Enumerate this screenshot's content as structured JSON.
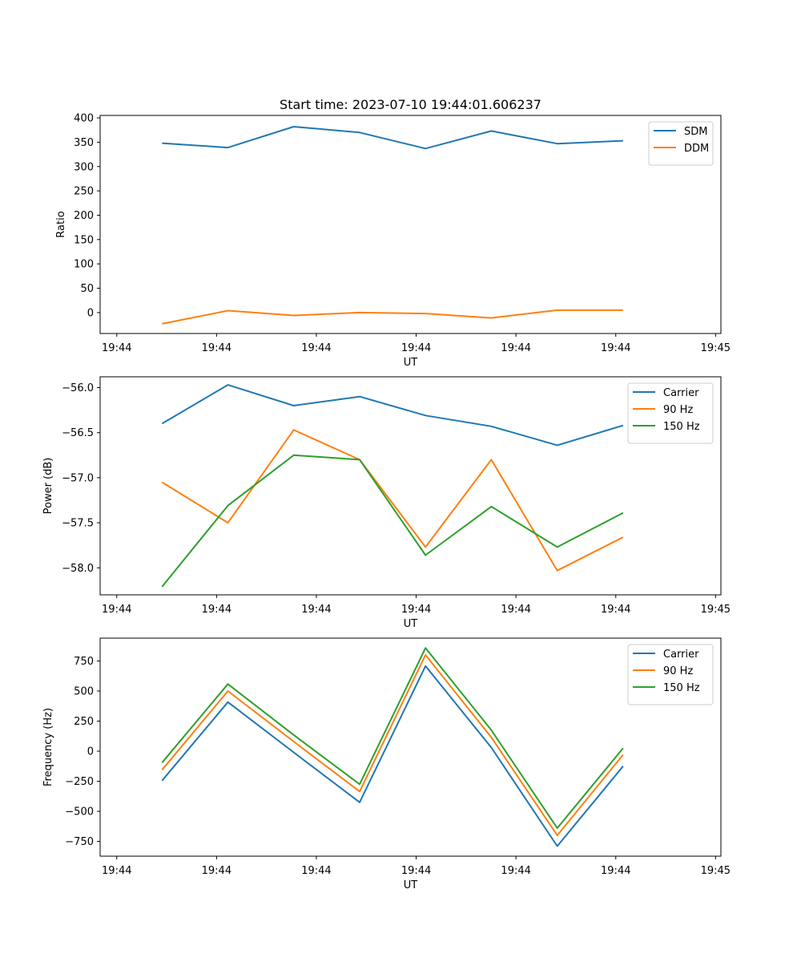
{
  "figure_title": "Start time: 2023-07-10 19:44:01.606237",
  "chart_data": [
    {
      "type": "line",
      "xlabel": "UT",
      "ylabel": "Ratio",
      "xlim": [
        0,
        9.33
      ],
      "x_ticks": [
        0.25,
        1.75,
        3.25,
        4.75,
        6.25,
        7.75,
        9.25
      ],
      "x_tick_labels": [
        "19:44",
        "19:44",
        "19:44",
        "19:44",
        "19:44",
        "19:44",
        "19:45"
      ],
      "ylim": [
        -43,
        405
      ],
      "y_ticks": [
        0,
        50,
        100,
        150,
        200,
        250,
        300,
        350,
        400
      ],
      "y_tick_labels": [
        "0",
        "50",
        "100",
        "150",
        "200",
        "250",
        "300",
        "350",
        "400"
      ],
      "legend_position": "top-right",
      "x": [
        0.93,
        1.92,
        2.91,
        3.9,
        4.89,
        5.88,
        6.87,
        7.86
      ],
      "series": [
        {
          "name": "SDM",
          "color": "#1f77b4",
          "values": [
            348,
            339,
            382,
            370,
            337,
            373,
            347,
            353
          ]
        },
        {
          "name": "DDM",
          "color": "#ff7f0e",
          "values": [
            -23,
            4,
            -6,
            0,
            -2,
            -11,
            5,
            5
          ]
        }
      ]
    },
    {
      "type": "line",
      "xlabel": "UT",
      "ylabel": "Power (dB)",
      "xlim": [
        0,
        9.33
      ],
      "x_ticks": [
        0.25,
        1.75,
        3.25,
        4.75,
        6.25,
        7.75,
        9.25
      ],
      "x_tick_labels": [
        "19:44",
        "19:44",
        "19:44",
        "19:44",
        "19:44",
        "19:44",
        "19:45"
      ],
      "ylim": [
        -58.3,
        -55.88
      ],
      "y_ticks": [
        -58.0,
        -57.5,
        -57.0,
        -56.5,
        -56.0
      ],
      "y_tick_labels": [
        "−58.0",
        "−57.5",
        "−57.0",
        "−56.5",
        "−56.0"
      ],
      "legend_position": "top-right",
      "x": [
        0.93,
        1.92,
        2.91,
        3.9,
        4.89,
        5.88,
        6.87,
        7.86
      ],
      "series": [
        {
          "name": "Carrier",
          "color": "#1f77b4",
          "values": [
            -56.4,
            -55.97,
            -56.2,
            -56.1,
            -56.31,
            -56.43,
            -56.64,
            -56.42
          ]
        },
        {
          "name": "90 Hz",
          "color": "#ff7f0e",
          "values": [
            -57.05,
            -57.5,
            -56.47,
            -56.8,
            -57.77,
            -56.8,
            -58.03,
            -57.66
          ]
        },
        {
          "name": "150 Hz",
          "color": "#2ca02c",
          "values": [
            -58.21,
            -57.31,
            -56.75,
            -56.8,
            -57.86,
            -57.32,
            -57.77,
            -57.39
          ]
        }
      ]
    },
    {
      "type": "line",
      "xlabel": "UT",
      "ylabel": "Frequency (Hz)",
      "xlim": [
        0,
        9.33
      ],
      "x_ticks": [
        0.25,
        1.75,
        3.25,
        4.75,
        6.25,
        7.75,
        9.25
      ],
      "x_tick_labels": [
        "19:44",
        "19:44",
        "19:44",
        "19:44",
        "19:44",
        "19:44",
        "19:45"
      ],
      "ylim": [
        -873,
        940
      ],
      "y_ticks": [
        -750,
        -500,
        -250,
        0,
        250,
        500,
        750
      ],
      "y_tick_labels": [
        "−750",
        "−500",
        "−250",
        "0",
        "250",
        "500",
        "750"
      ],
      "legend_position": "top-right",
      "x": [
        0.93,
        1.92,
        2.91,
        3.9,
        4.89,
        5.88,
        6.87,
        7.86
      ],
      "series": [
        {
          "name": "Carrier",
          "color": "#1f77b4",
          "values": [
            -245,
            408,
            -10,
            -425,
            708,
            30,
            -790,
            -125
          ]
        },
        {
          "name": "90 Hz",
          "color": "#ff7f0e",
          "values": [
            -155,
            500,
            80,
            -335,
            800,
            115,
            -700,
            -30
          ]
        },
        {
          "name": "150 Hz",
          "color": "#2ca02c",
          "values": [
            -95,
            558,
            135,
            -275,
            858,
            175,
            -640,
            25
          ]
        }
      ]
    }
  ]
}
